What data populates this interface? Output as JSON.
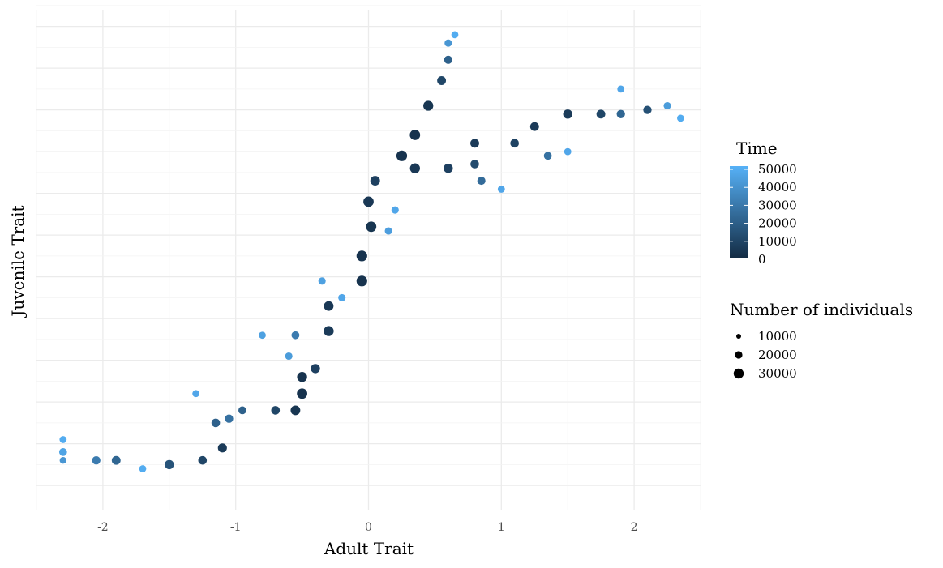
{
  "chart_data": {
    "type": "scatter",
    "xlabel": "Adult Trait",
    "ylabel": "Juvenile Trait",
    "xlim": [
      -2.5,
      2.5
    ],
    "ylim": [
      -3.05,
      2.95
    ],
    "x_ticks": [
      -2,
      -1,
      0,
      1,
      2
    ],
    "x_tick_labels": [
      "-2",
      "-1",
      "0",
      "1",
      "2"
    ],
    "y_ticks": [],
    "y_tick_labels": [],
    "grid": true,
    "color_legend": {
      "title": "Time",
      "range": [
        0,
        50000
      ],
      "labels": [
        "50000",
        "40000",
        "30000",
        "20000",
        "10000",
        "0"
      ],
      "colors": [
        "#132b43",
        "#56b1f7"
      ]
    },
    "size_legend": {
      "title": "Number of individuals",
      "labels": [
        "10000",
        "20000",
        "30000"
      ],
      "values": [
        10000,
        20000,
        30000
      ]
    },
    "series": [
      {
        "branch": "trunk",
        "points": [
          {
            "x": -2.3,
            "y": -2.2,
            "time": 48000,
            "n": 9000
          },
          {
            "x": -2.3,
            "y": -2.35,
            "time": 45000,
            "n": 12000
          },
          {
            "x": -2.3,
            "y": -2.45,
            "time": 40000,
            "n": 8000
          },
          {
            "x": -2.05,
            "y": -2.45,
            "time": 30000,
            "n": 14000
          },
          {
            "x": -1.9,
            "y": -2.45,
            "time": 22000,
            "n": 16000
          },
          {
            "x": -1.7,
            "y": -2.55,
            "time": 48000,
            "n": 9000
          },
          {
            "x": -1.5,
            "y": -2.5,
            "time": 15000,
            "n": 18000
          },
          {
            "x": -1.25,
            "y": -2.45,
            "time": 10000,
            "n": 15000
          },
          {
            "x": -1.1,
            "y": -2.3,
            "time": 6000,
            "n": 17000
          },
          {
            "x": -1.15,
            "y": -2.0,
            "time": 20000,
            "n": 15000
          },
          {
            "x": -1.05,
            "y": -1.95,
            "time": 26000,
            "n": 14000
          },
          {
            "x": -1.3,
            "y": -1.65,
            "time": 46000,
            "n": 9000
          },
          {
            "x": -0.95,
            "y": -1.85,
            "time": 20000,
            "n": 12000
          },
          {
            "x": -0.7,
            "y": -1.85,
            "time": 10000,
            "n": 15000
          },
          {
            "x": -0.55,
            "y": -1.85,
            "time": 4000,
            "n": 20000
          },
          {
            "x": -0.5,
            "y": -1.65,
            "time": 3000,
            "n": 24000
          },
          {
            "x": -0.5,
            "y": -1.45,
            "time": 3000,
            "n": 22000
          },
          {
            "x": -0.4,
            "y": -1.35,
            "time": 8000,
            "n": 18000
          },
          {
            "x": -0.6,
            "y": -1.2,
            "time": 42000,
            "n": 10000
          },
          {
            "x": -0.8,
            "y": -0.95,
            "time": 44000,
            "n": 9000
          },
          {
            "x": -0.55,
            "y": -0.95,
            "time": 30000,
            "n": 12000
          },
          {
            "x": -0.3,
            "y": -0.9,
            "time": 6000,
            "n": 22000
          },
          {
            "x": -0.3,
            "y": -0.6,
            "time": 5000,
            "n": 20000
          },
          {
            "x": -0.2,
            "y": -0.5,
            "time": 46000,
            "n": 10000
          },
          {
            "x": -0.35,
            "y": -0.3,
            "time": 44000,
            "n": 10000
          },
          {
            "x": -0.05,
            "y": -0.3,
            "time": 3000,
            "n": 26000
          },
          {
            "x": -0.05,
            "y": 0.0,
            "time": 3000,
            "n": 26000
          },
          {
            "x": 0.02,
            "y": 0.35,
            "time": 4000,
            "n": 24000
          },
          {
            "x": 0.0,
            "y": 0.65,
            "time": 5000,
            "n": 24000
          },
          {
            "x": 0.05,
            "y": 0.9,
            "time": 8000,
            "n": 20000
          },
          {
            "x": 0.15,
            "y": 0.3,
            "time": 43000,
            "n": 10000
          },
          {
            "x": 0.2,
            "y": 0.55,
            "time": 46000,
            "n": 10000
          },
          {
            "x": 0.25,
            "y": 1.2,
            "time": 3000,
            "n": 26000
          },
          {
            "x": 0.35,
            "y": 1.45,
            "time": 3000,
            "n": 24000
          },
          {
            "x": 0.45,
            "y": 1.8,
            "time": 4000,
            "n": 22000
          },
          {
            "x": 0.55,
            "y": 2.1,
            "time": 10000,
            "n": 16000
          },
          {
            "x": 0.6,
            "y": 2.35,
            "time": 20000,
            "n": 13000
          },
          {
            "x": 0.6,
            "y": 2.55,
            "time": 40000,
            "n": 10000
          },
          {
            "x": 0.65,
            "y": 2.65,
            "time": 48000,
            "n": 9000
          }
        ]
      },
      {
        "branch": "side",
        "points": [
          {
            "x": 0.35,
            "y": 1.05,
            "time": 5000,
            "n": 22000
          },
          {
            "x": 0.6,
            "y": 1.05,
            "time": 8000,
            "n": 18000
          },
          {
            "x": 0.8,
            "y": 1.1,
            "time": 12000,
            "n": 15000
          },
          {
            "x": 0.85,
            "y": 0.9,
            "time": 24000,
            "n": 13000
          },
          {
            "x": 1.0,
            "y": 0.8,
            "time": 46000,
            "n": 9000
          },
          {
            "x": 0.8,
            "y": 1.35,
            "time": 6000,
            "n": 16000
          },
          {
            "x": 1.1,
            "y": 1.35,
            "time": 9000,
            "n": 15000
          },
          {
            "x": 1.35,
            "y": 1.2,
            "time": 26000,
            "n": 12000
          },
          {
            "x": 1.5,
            "y": 1.25,
            "time": 46000,
            "n": 9000
          },
          {
            "x": 1.25,
            "y": 1.55,
            "time": 6000,
            "n": 16000
          },
          {
            "x": 1.5,
            "y": 1.7,
            "time": 6000,
            "n": 18000
          },
          {
            "x": 1.75,
            "y": 1.7,
            "time": 10000,
            "n": 16000
          },
          {
            "x": 1.9,
            "y": 1.7,
            "time": 22000,
            "n": 14000
          },
          {
            "x": 1.9,
            "y": 2.0,
            "time": 46000,
            "n": 9000
          },
          {
            "x": 2.1,
            "y": 1.75,
            "time": 14000,
            "n": 14000
          },
          {
            "x": 2.25,
            "y": 1.8,
            "time": 42000,
            "n": 10000
          },
          {
            "x": 2.35,
            "y": 1.65,
            "time": 48000,
            "n": 9000
          }
        ]
      }
    ]
  }
}
